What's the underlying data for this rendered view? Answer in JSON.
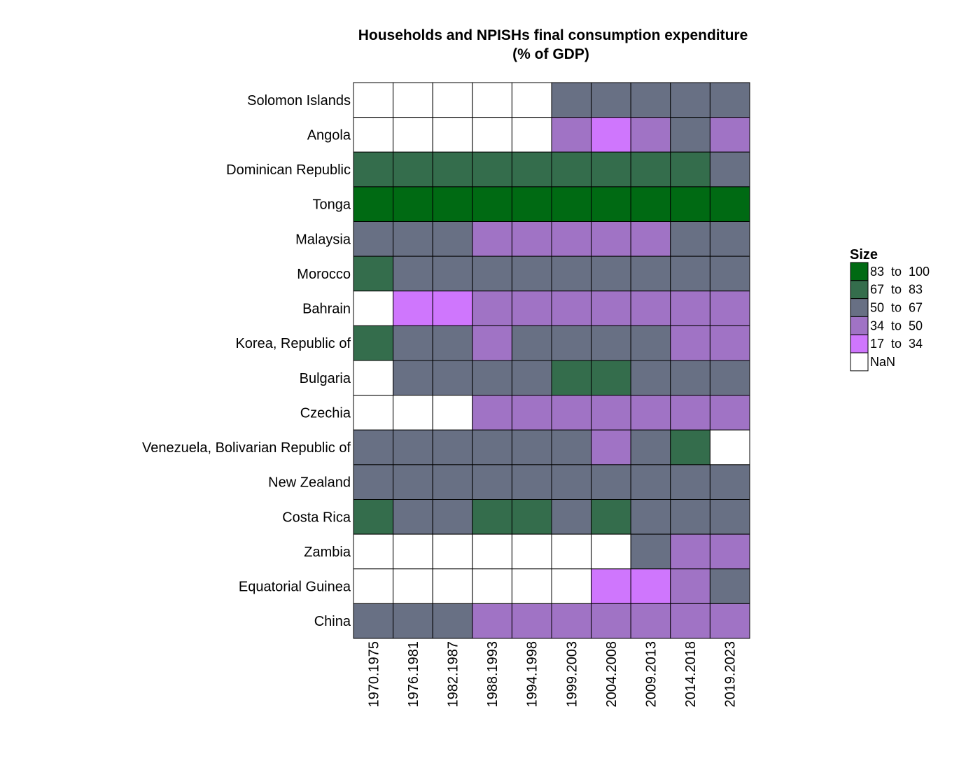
{
  "chart_data": {
    "type": "heatmap",
    "title": [
      "Households and NPISHs final consumption expenditure",
      "(% of GDP)"
    ],
    "xlabel": "",
    "ylabel": "",
    "columns": [
      "1970.1975",
      "1976.1981",
      "1982.1987",
      "1988.1993",
      "1994.1998",
      "1999.2003",
      "2004.2008",
      "2009.2013",
      "2014.2018",
      "2019.2023"
    ],
    "rows": [
      "Solomon Islands",
      "Angola",
      "Dominican Republic",
      "Tonga",
      "Malaysia",
      "Morocco",
      "Bahrain",
      "Korea, Republic of",
      "Bulgaria",
      "Czechia",
      "Venezuela, Bolivarian Republic of",
      "New Zealand",
      "Costa Rica",
      "Zambia",
      "Equatorial Guinea",
      "China"
    ],
    "bins": [
      {
        "label": "83  to  100",
        "color": "#006a13"
      },
      {
        "label": "67  to  83",
        "color": "#346d4c"
      },
      {
        "label": "50  to  67",
        "color": "#687084"
      },
      {
        "label": "34  to  50",
        "color": "#a073c5"
      },
      {
        "label": "17  to  34",
        "color": "#cf76fd"
      },
      {
        "label": "NaN",
        "color": "#ffffff"
      }
    ],
    "cells": [
      [
        "NaN",
        "NaN",
        "NaN",
        "NaN",
        "NaN",
        "50  to  67",
        "50  to  67",
        "50  to  67",
        "50  to  67",
        "50  to  67"
      ],
      [
        "NaN",
        "NaN",
        "NaN",
        "NaN",
        "NaN",
        "34  to  50",
        "17  to  34",
        "34  to  50",
        "50  to  67",
        "34  to  50"
      ],
      [
        "67  to  83",
        "67  to  83",
        "67  to  83",
        "67  to  83",
        "67  to  83",
        "67  to  83",
        "67  to  83",
        "67  to  83",
        "67  to  83",
        "50  to  67"
      ],
      [
        "83  to  100",
        "83  to  100",
        "83  to  100",
        "83  to  100",
        "83  to  100",
        "83  to  100",
        "83  to  100",
        "83  to  100",
        "83  to  100",
        "83  to  100"
      ],
      [
        "50  to  67",
        "50  to  67",
        "50  to  67",
        "34  to  50",
        "34  to  50",
        "34  to  50",
        "34  to  50",
        "34  to  50",
        "50  to  67",
        "50  to  67"
      ],
      [
        "67  to  83",
        "50  to  67",
        "50  to  67",
        "50  to  67",
        "50  to  67",
        "50  to  67",
        "50  to  67",
        "50  to  67",
        "50  to  67",
        "50  to  67"
      ],
      [
        "NaN",
        "17  to  34",
        "17  to  34",
        "34  to  50",
        "34  to  50",
        "34  to  50",
        "34  to  50",
        "34  to  50",
        "34  to  50",
        "34  to  50"
      ],
      [
        "67  to  83",
        "50  to  67",
        "50  to  67",
        "34  to  50",
        "50  to  67",
        "50  to  67",
        "50  to  67",
        "50  to  67",
        "34  to  50",
        "34  to  50"
      ],
      [
        "NaN",
        "50  to  67",
        "50  to  67",
        "50  to  67",
        "50  to  67",
        "67  to  83",
        "67  to  83",
        "50  to  67",
        "50  to  67",
        "50  to  67"
      ],
      [
        "NaN",
        "NaN",
        "NaN",
        "34  to  50",
        "34  to  50",
        "34  to  50",
        "34  to  50",
        "34  to  50",
        "34  to  50",
        "34  to  50"
      ],
      [
        "50  to  67",
        "50  to  67",
        "50  to  67",
        "50  to  67",
        "50  to  67",
        "50  to  67",
        "34  to  50",
        "50  to  67",
        "67  to  83",
        "NaN"
      ],
      [
        "50  to  67",
        "50  to  67",
        "50  to  67",
        "50  to  67",
        "50  to  67",
        "50  to  67",
        "50  to  67",
        "50  to  67",
        "50  to  67",
        "50  to  67"
      ],
      [
        "67  to  83",
        "50  to  67",
        "50  to  67",
        "67  to  83",
        "67  to  83",
        "50  to  67",
        "67  to  83",
        "50  to  67",
        "50  to  67",
        "50  to  67"
      ],
      [
        "NaN",
        "NaN",
        "NaN",
        "NaN",
        "NaN",
        "NaN",
        "NaN",
        "50  to  67",
        "34  to  50",
        "34  to  50"
      ],
      [
        "NaN",
        "NaN",
        "NaN",
        "NaN",
        "NaN",
        "NaN",
        "17  to  34",
        "17  to  34",
        "34  to  50",
        "50  to  67"
      ],
      [
        "50  to  67",
        "50  to  67",
        "50  to  67",
        "34  to  50",
        "34  to  50",
        "34  to  50",
        "34  to  50",
        "34  to  50",
        "34  to  50",
        "34  to  50"
      ]
    ],
    "legend": {
      "title": "Size",
      "position": "right"
    }
  }
}
